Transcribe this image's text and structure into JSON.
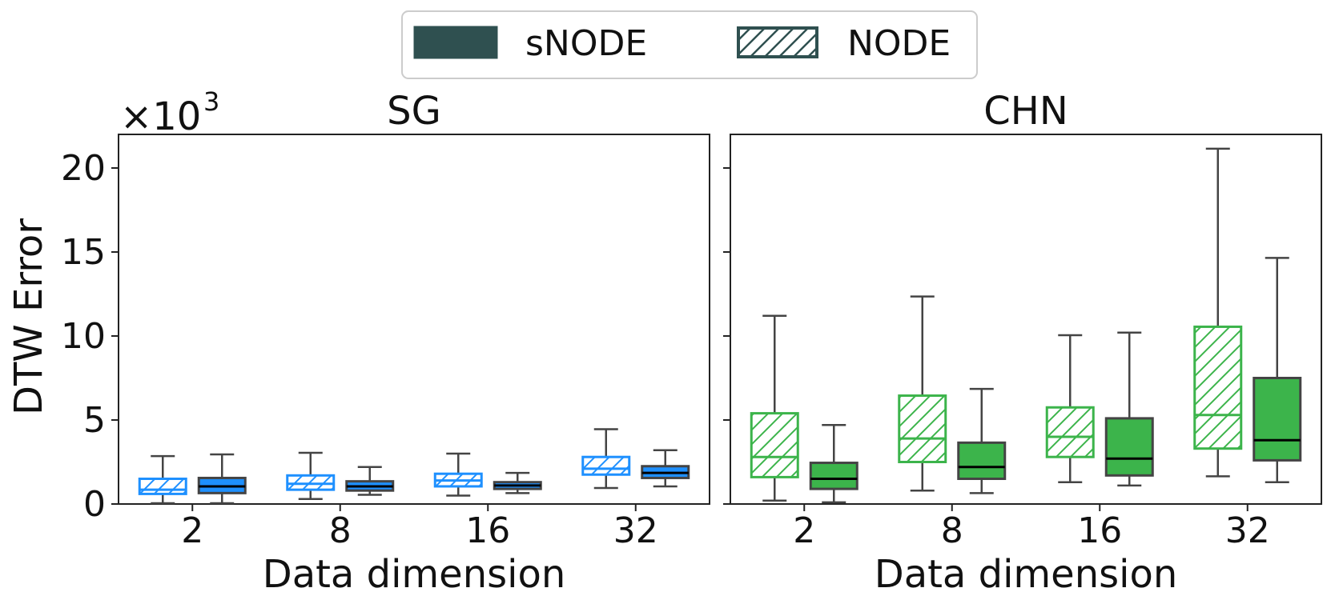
{
  "legend": {
    "snode_label": "sNODE",
    "node_label": "NODE",
    "swatch_color": "#2F5050"
  },
  "multiplier": {
    "base": "×10",
    "exponent": "3"
  },
  "chart_data": [
    {
      "type": "box",
      "title": "SG",
      "xlabel": "Data dimension",
      "ylabel": "DTW Error",
      "ylim": [
        0,
        22
      ],
      "yticks": [
        "0",
        "5",
        "10",
        "15",
        "20"
      ],
      "categories": [
        "2",
        "8",
        "16",
        "32"
      ],
      "color": "#1E90FF",
      "series": [
        {
          "name": "NODE",
          "style": "hatched",
          "boxes": [
            {
              "min": 0.05,
              "q1": 0.6,
              "median": 0.85,
              "q3": 1.5,
              "max": 2.85
            },
            {
              "min": 0.3,
              "q1": 0.85,
              "median": 1.2,
              "q3": 1.7,
              "max": 3.05
            },
            {
              "min": 0.5,
              "q1": 1.05,
              "median": 1.4,
              "q3": 1.8,
              "max": 3.0
            },
            {
              "min": 0.95,
              "q1": 1.75,
              "median": 2.1,
              "q3": 2.8,
              "max": 4.45
            }
          ]
        },
        {
          "name": "sNODE",
          "style": "filled",
          "boxes": [
            {
              "min": 0.05,
              "q1": 0.65,
              "median": 1.05,
              "q3": 1.55,
              "max": 2.95
            },
            {
              "min": 0.55,
              "q1": 0.8,
              "median": 1.05,
              "q3": 1.35,
              "max": 2.2
            },
            {
              "min": 0.65,
              "q1": 0.9,
              "median": 1.1,
              "q3": 1.3,
              "max": 1.85
            },
            {
              "min": 1.05,
              "q1": 1.55,
              "median": 1.85,
              "q3": 2.25,
              "max": 3.2
            }
          ]
        }
      ]
    },
    {
      "type": "box",
      "title": "CHN",
      "xlabel": "Data dimension",
      "ylabel": "",
      "ylim": [
        0,
        22
      ],
      "categories": [
        "2",
        "8",
        "16",
        "32"
      ],
      "color": "#3CB44B",
      "series": [
        {
          "name": "NODE",
          "style": "hatched",
          "boxes": [
            {
              "min": 0.2,
              "q1": 1.6,
              "median": 2.8,
              "q3": 5.4,
              "max": 11.2
            },
            {
              "min": 0.8,
              "q1": 2.5,
              "median": 3.9,
              "q3": 6.45,
              "max": 12.35
            },
            {
              "min": 1.3,
              "q1": 2.8,
              "median": 4.0,
              "q3": 5.75,
              "max": 10.05
            },
            {
              "min": 1.65,
              "q1": 3.3,
              "median": 5.3,
              "q3": 10.55,
              "max": 21.15
            }
          ]
        },
        {
          "name": "sNODE",
          "style": "filled",
          "boxes": [
            {
              "min": 0.1,
              "q1": 0.9,
              "median": 1.5,
              "q3": 2.45,
              "max": 4.7
            },
            {
              "min": 0.65,
              "q1": 1.5,
              "median": 2.2,
              "q3": 3.65,
              "max": 6.85
            },
            {
              "min": 1.1,
              "q1": 1.7,
              "median": 2.7,
              "q3": 5.1,
              "max": 10.2
            },
            {
              "min": 1.3,
              "q1": 2.6,
              "median": 3.8,
              "q3": 7.5,
              "max": 14.65
            }
          ]
        }
      ]
    }
  ]
}
